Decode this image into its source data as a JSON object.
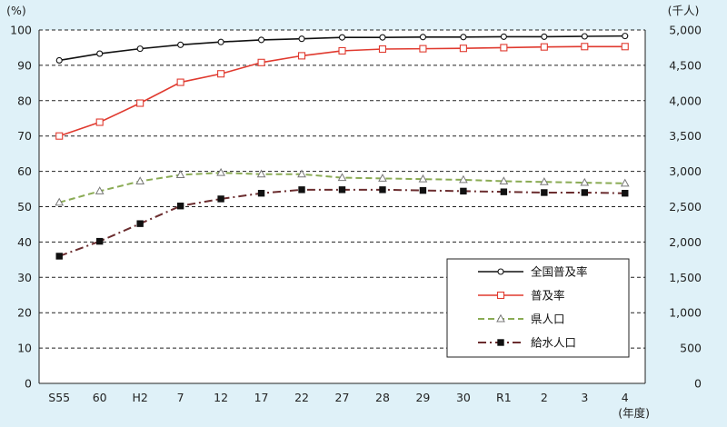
{
  "chart_data": {
    "type": "line",
    "left_unit": "(%)",
    "right_unit": "(千人)",
    "x_unit": "(年度)",
    "categories": [
      "S55",
      "60",
      "H2",
      "7",
      "12",
      "17",
      "22",
      "27",
      "28",
      "29",
      "30",
      "R1",
      "2",
      "3",
      "4"
    ],
    "y_left": {
      "min": 0,
      "max": 100,
      "step": 10,
      "ticks": [
        "0",
        "10",
        "20",
        "30",
        "40",
        "50",
        "60",
        "70",
        "80",
        "90",
        "100"
      ]
    },
    "y_right": {
      "min": 0,
      "max": 5000,
      "step": 500,
      "ticks": [
        "0",
        "500",
        "1,000",
        "1,500",
        "2,000",
        "2,500",
        "3,000",
        "3,500",
        "4,000",
        "4,500",
        "5,000"
      ]
    },
    "grid": "dashed horizontal",
    "legend_position": "lower-right",
    "series": [
      {
        "name": "全国普及率",
        "axis": "left",
        "color": "#111111",
        "marker": "circle-open",
        "dash": "solid",
        "values": [
          91.4,
          93.3,
          94.7,
          95.8,
          96.6,
          97.2,
          97.5,
          97.9,
          97.9,
          98.0,
          98.0,
          98.1,
          98.1,
          98.2,
          98.3
        ]
      },
      {
        "name": "普及率",
        "axis": "left",
        "color": "#e03a2f",
        "marker": "square-open",
        "dash": "solid",
        "values": [
          70.0,
          73.9,
          79.3,
          85.2,
          87.6,
          90.8,
          92.7,
          94.1,
          94.6,
          94.7,
          94.8,
          95.0,
          95.2,
          95.3,
          95.3
        ]
      },
      {
        "name": "県人口",
        "axis": "right",
        "color": "#8aab54",
        "marker": "triangle-open",
        "dash": "dashed",
        "values": [
          2560,
          2720,
          2860,
          2950,
          2980,
          2960,
          2960,
          2910,
          2900,
          2890,
          2880,
          2860,
          2850,
          2840,
          2830
        ]
      },
      {
        "name": "給水人口",
        "axis": "right",
        "color": "#6b2d2f",
        "marker": "square-filled",
        "dash": "dashdot",
        "values": [
          1800,
          2010,
          2260,
          2510,
          2610,
          2690,
          2740,
          2740,
          2740,
          2730,
          2720,
          2710,
          2700,
          2700,
          2690
        ]
      }
    ]
  }
}
